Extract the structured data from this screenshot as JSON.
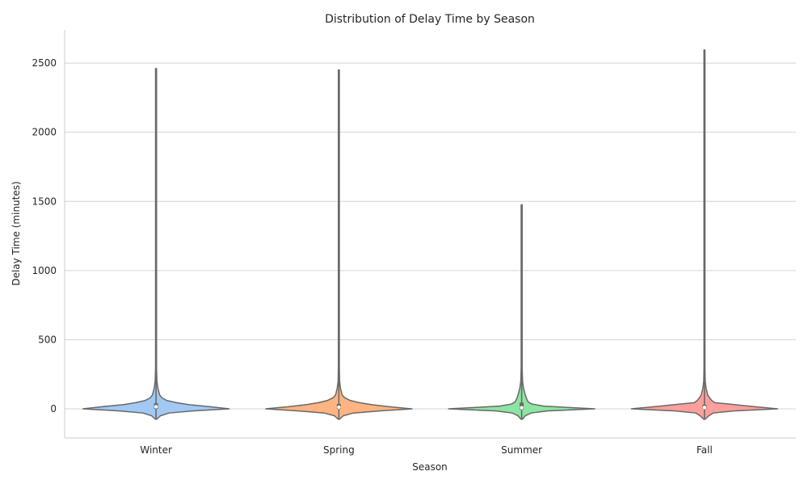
{
  "chart_data": {
    "type": "violin",
    "title": "Distribution of Delay Time by Season",
    "xlabel": "Season",
    "ylabel": "Delay Time (minutes)",
    "categories": [
      "Winter",
      "Spring",
      "Summer",
      "Fall"
    ],
    "ylim": [
      -210,
      2740
    ],
    "yticks": [
      0,
      500,
      1000,
      1500,
      2000,
      2500
    ],
    "grid": "horizontal",
    "colors": [
      "#a1c9f4",
      "#ffb482",
      "#8de5a1",
      "#ff9f9b"
    ],
    "line_color": "#696969",
    "series": [
      {
        "category": "Winter",
        "min": -75,
        "max": 2460,
        "q1": 0,
        "median": 15,
        "q3": 40,
        "density": [
          [
            -75,
            0.01
          ],
          [
            -50,
            0.06
          ],
          [
            -30,
            0.18
          ],
          [
            -15,
            0.5
          ],
          [
            0,
            1.0
          ],
          [
            15,
            0.75
          ],
          [
            30,
            0.45
          ],
          [
            45,
            0.28
          ],
          [
            60,
            0.15
          ],
          [
            80,
            0.08
          ],
          [
            100,
            0.05
          ],
          [
            150,
            0.025
          ],
          [
            200,
            0.012
          ],
          [
            300,
            0.005
          ],
          [
            500,
            0.003
          ],
          [
            2460,
            0.003
          ]
        ]
      },
      {
        "category": "Spring",
        "min": -75,
        "max": 2450,
        "q1": 0,
        "median": 12,
        "q3": 35,
        "density": [
          [
            -75,
            0.01
          ],
          [
            -50,
            0.06
          ],
          [
            -30,
            0.2
          ],
          [
            -15,
            0.55
          ],
          [
            0,
            1.0
          ],
          [
            15,
            0.7
          ],
          [
            30,
            0.45
          ],
          [
            45,
            0.28
          ],
          [
            60,
            0.16
          ],
          [
            80,
            0.08
          ],
          [
            100,
            0.045
          ],
          [
            150,
            0.022
          ],
          [
            200,
            0.01
          ],
          [
            300,
            0.005
          ],
          [
            500,
            0.003
          ],
          [
            2450,
            0.003
          ]
        ]
      },
      {
        "category": "Summer",
        "min": -75,
        "max": 1475,
        "q1": -5,
        "median": 8,
        "q3": 45,
        "density": [
          [
            -75,
            0.01
          ],
          [
            -50,
            0.05
          ],
          [
            -30,
            0.13
          ],
          [
            -15,
            0.35
          ],
          [
            0,
            1.0
          ],
          [
            10,
            0.65
          ],
          [
            20,
            0.3
          ],
          [
            35,
            0.14
          ],
          [
            50,
            0.09
          ],
          [
            70,
            0.07
          ],
          [
            100,
            0.05
          ],
          [
            150,
            0.025
          ],
          [
            200,
            0.012
          ],
          [
            300,
            0.005
          ],
          [
            500,
            0.003
          ],
          [
            1475,
            0.003
          ]
        ]
      },
      {
        "category": "Fall",
        "min": -75,
        "max": 2595,
        "q1": 0,
        "median": 10,
        "q3": 30,
        "density": [
          [
            -75,
            0.01
          ],
          [
            -50,
            0.06
          ],
          [
            -30,
            0.12
          ],
          [
            -15,
            0.4
          ],
          [
            0,
            1.0
          ],
          [
            15,
            0.7
          ],
          [
            30,
            0.42
          ],
          [
            45,
            0.14
          ],
          [
            60,
            0.1
          ],
          [
            80,
            0.07
          ],
          [
            100,
            0.045
          ],
          [
            150,
            0.022
          ],
          [
            200,
            0.01
          ],
          [
            300,
            0.005
          ],
          [
            500,
            0.003
          ],
          [
            2595,
            0.003
          ]
        ]
      }
    ]
  }
}
